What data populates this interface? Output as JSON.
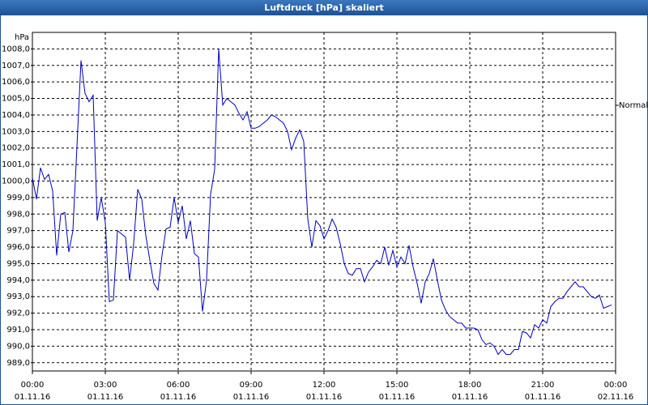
{
  "chart_data": {
    "type": "line",
    "title": "Luftdruck [hPa] skaliert",
    "y_label": "hPa",
    "x": [
      0,
      10,
      20,
      30,
      40,
      50,
      60,
      70,
      80,
      90,
      100,
      110,
      120,
      130,
      140,
      150,
      160,
      170,
      180,
      190,
      200,
      210,
      220,
      230,
      240,
      250,
      260,
      270,
      280,
      290,
      300,
      310,
      320,
      330,
      340,
      350,
      360,
      370,
      380,
      390,
      400,
      410,
      420,
      430,
      440,
      450,
      460,
      470,
      480,
      490,
      500,
      510,
      520,
      530,
      540,
      550,
      560,
      570,
      580,
      590,
      600,
      610,
      620,
      630,
      640,
      650,
      660,
      670,
      680,
      690,
      700,
      710,
      720,
      730,
      740,
      750,
      760,
      770,
      780,
      790,
      800,
      810,
      820,
      830,
      840,
      850,
      860,
      870,
      880,
      890,
      900,
      910,
      920,
      930,
      940,
      950,
      960,
      970,
      980,
      990,
      1000,
      1010,
      1020,
      1030,
      1040,
      1050,
      1060,
      1070,
      1080,
      1090,
      1100,
      1110,
      1120,
      1130,
      1140,
      1150,
      1160,
      1170,
      1180,
      1190,
      1200,
      1210,
      1220,
      1230,
      1240,
      1250,
      1260,
      1270,
      1280,
      1290,
      1300,
      1310,
      1320,
      1330,
      1340,
      1350,
      1360,
      1370,
      1380,
      1390,
      1400,
      1410,
      1420,
      1430
    ],
    "series": [
      {
        "name": "Normal",
        "color": "#0000c0",
        "values": [
          1000.2,
          998.9,
          1000.8,
          1000.1,
          1000.4,
          999.4,
          995.5,
          998.0,
          998.1,
          995.7,
          997.0,
          1002.1,
          1007.3,
          1005.3,
          1004.8,
          1005.2,
          997.6,
          999.0,
          997.5,
          992.7,
          992.8,
          997.0,
          996.8,
          996.6,
          994.0,
          996.2,
          999.5,
          998.9,
          996.7,
          995.2,
          993.8,
          993.4,
          995.5,
          997.1,
          997.2,
          999.0,
          997.5,
          998.5,
          996.5,
          997.6,
          995.6,
          995.4,
          992.1,
          994.0,
          999.2,
          1000.7,
          1008.0,
          1004.6,
          1005.0,
          1004.8,
          1004.6,
          1004.1,
          1003.7,
          1004.2,
          1003.2,
          1003.2,
          1003.3,
          1003.5,
          1003.7,
          1004.0,
          1003.9,
          1003.7,
          1003.5,
          1003.0,
          1001.9,
          1002.6,
          1003.1,
          1002.4,
          997.7,
          996.0,
          997.6,
          997.3,
          996.5,
          997.0,
          997.7,
          997.2,
          996.2,
          995.0,
          994.4,
          994.3,
          994.7,
          994.7,
          993.9,
          994.5,
          994.8,
          995.2,
          995.0,
          996.0,
          994.9,
          995.8,
          994.8,
          995.4,
          995.0,
          996.1,
          994.8,
          993.8,
          992.6,
          993.9,
          994.4,
          995.3,
          994.0,
          992.8,
          992.2,
          991.8,
          991.6,
          991.4,
          991.4,
          991.1,
          991.1,
          991.1,
          991.0,
          990.4,
          990.1,
          990.2,
          990.0,
          989.5,
          989.8,
          989.5,
          989.5,
          989.8,
          989.8,
          990.9,
          990.8,
          990.5,
          991.3,
          991.1,
          991.6,
          991.4,
          992.4,
          992.7,
          992.9,
          992.9,
          993.3,
          993.6,
          993.9,
          993.6,
          993.6,
          993.3,
          993.0,
          992.9,
          993.1,
          992.3,
          992.4,
          992.5
        ]
      }
    ],
    "xlim": [
      0,
      1440
    ],
    "xticks": [
      {
        "value": 0,
        "label": "00:00"
      },
      {
        "value": 180,
        "label": "03:00"
      },
      {
        "value": 360,
        "label": "06:00"
      },
      {
        "value": 540,
        "label": "09:00"
      },
      {
        "value": 720,
        "label": "12:00"
      },
      {
        "value": 900,
        "label": "15:00"
      },
      {
        "value": 1080,
        "label": "18:00"
      },
      {
        "value": 1260,
        "label": "21:00"
      },
      {
        "value": 1440,
        "label": "00:00"
      }
    ],
    "xtick_dates": [
      "01.11.16",
      "01.11.16",
      "01.11.16",
      "01.11.16",
      "01.11.16",
      "01.11.16",
      "01.11.16",
      "01.11.16",
      "02.11.16"
    ],
    "ylim": [
      988.5,
      1009
    ],
    "yticks": [
      {
        "value": 989,
        "label": "989,0"
      },
      {
        "value": 990,
        "label": "990,0"
      },
      {
        "value": 991,
        "label": "991,0"
      },
      {
        "value": 992,
        "label": "992,0"
      },
      {
        "value": 993,
        "label": "993,0"
      },
      {
        "value": 994,
        "label": "994,0"
      },
      {
        "value": 995,
        "label": "995,0"
      },
      {
        "value": 996,
        "label": "996,0"
      },
      {
        "value": 997,
        "label": "997,0"
      },
      {
        "value": 998,
        "label": "998,0"
      },
      {
        "value": 999,
        "label": "999,0"
      },
      {
        "value": 1000,
        "label": "1000,0"
      },
      {
        "value": 1001,
        "label": "1001,0"
      },
      {
        "value": 1002,
        "label": "1002,0"
      },
      {
        "value": 1003,
        "label": "1003,0"
      },
      {
        "value": 1004,
        "label": "1004,0"
      },
      {
        "value": 1005,
        "label": "1005,0"
      },
      {
        "value": 1006,
        "label": "1006,0"
      },
      {
        "value": 1007,
        "label": "1007,0"
      },
      {
        "value": 1008,
        "label": "1008,0"
      }
    ],
    "grid": true
  }
}
